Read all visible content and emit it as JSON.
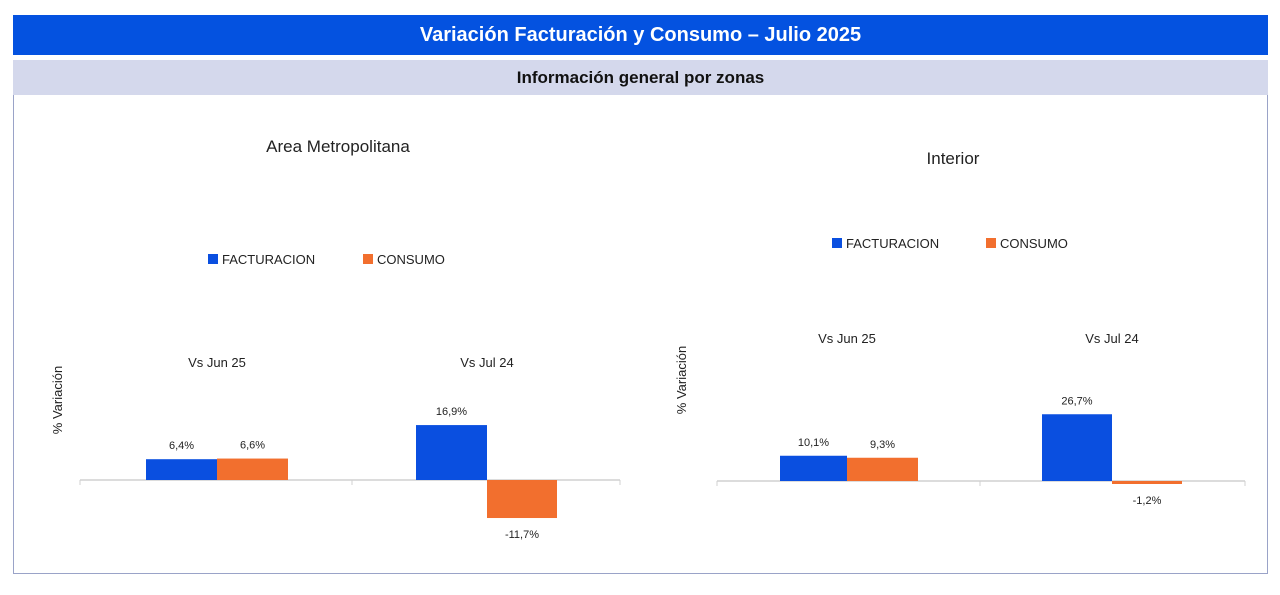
{
  "header": {
    "title": "Variación Facturación y Consumo – Julio 2025",
    "subtitle": "Información general por zonas"
  },
  "colors": {
    "header_bg": "#0452e0",
    "subheader_bg": "#d4d8ec",
    "facturacion": "#0a4fe0",
    "consumo": "#f26f2e"
  },
  "chart_data": [
    {
      "type": "bar",
      "title": "Area Metropolitana",
      "ylabel": "% Variación",
      "categories": [
        "Vs Jun 25",
        "Vs Jul 24"
      ],
      "series": [
        {
          "name": "FACTURACION",
          "values": [
            6.4,
            16.9
          ],
          "labels": [
            "6,4%",
            "16,9%"
          ]
        },
        {
          "name": "CONSUMO",
          "values": [
            6.6,
            -11.7
          ],
          "labels": [
            "6,6%",
            "-11,7%"
          ]
        }
      ],
      "legend": "top-center",
      "grid": false
    },
    {
      "type": "bar",
      "title": "Interior",
      "ylabel": "% Variación",
      "categories": [
        "Vs Jun 25",
        "Vs Jul 24"
      ],
      "series": [
        {
          "name": "FACTURACION",
          "values": [
            10.1,
            26.7
          ],
          "labels": [
            "10,1%",
            "26,7%"
          ]
        },
        {
          "name": "CONSUMO",
          "values": [
            9.3,
            -1.2
          ],
          "labels": [
            "9,3%",
            "-1,2%"
          ]
        }
      ],
      "legend": "top-center",
      "grid": false
    }
  ]
}
